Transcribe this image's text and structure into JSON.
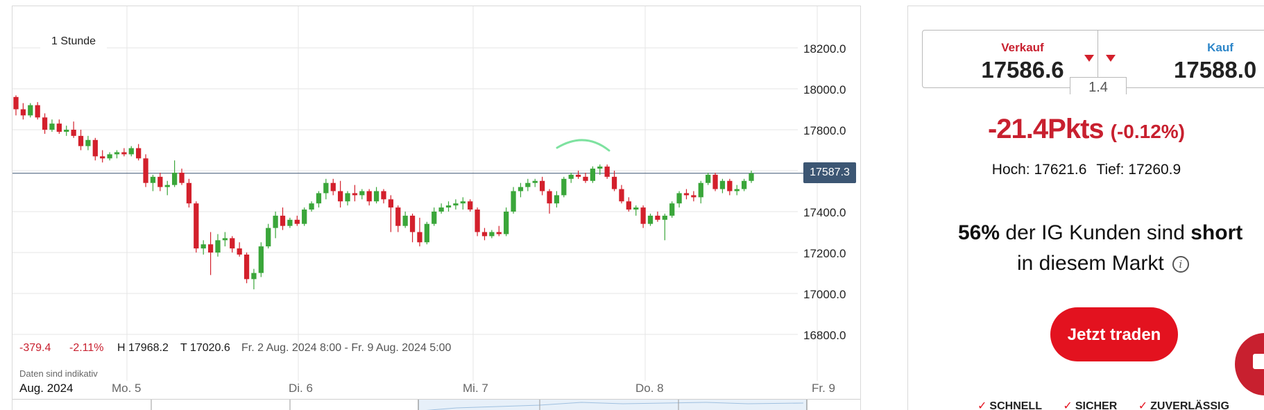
{
  "chart": {
    "period": "1 Stunde",
    "price_axis": [
      "18200.0",
      "18000.0",
      "17800.0",
      "17600.0",
      "17400.0",
      "17200.0",
      "17000.0",
      "16800.0"
    ],
    "current_price": "17587.3",
    "stats": {
      "change": "-379.4",
      "change_pct": "-2.11%",
      "high": "H 17968.2",
      "low": "T 17020.6",
      "range": "Fr. 2 Aug. 2024 8:00 - Fr. 9 Aug. 2024 5:00"
    },
    "disclaimer": "Daten sind indikativ",
    "month": "Aug. 2024",
    "days": [
      "Mo. 5",
      "Di. 6",
      "Mi. 7",
      "Do. 8",
      "Fr. 9"
    ],
    "colors": {
      "up": "#3aa63a",
      "down": "#d3202c",
      "line": "#3c5673"
    }
  },
  "chart_data": {
    "type": "candlestick",
    "interval": "1 Stunde",
    "y_axis_ticks": [
      16800,
      17000,
      17200,
      17400,
      17600,
      17800,
      18000,
      18200
    ],
    "x_axis_labels": [
      "Mo. 5",
      "Di. 6",
      "Mi. 7",
      "Do. 8",
      "Fr. 9"
    ],
    "current_price": 17587.3,
    "ohlc": [
      [
        17960,
        17968,
        17870,
        17900
      ],
      [
        17900,
        17930,
        17850,
        17870
      ],
      [
        17870,
        17930,
        17860,
        17920
      ],
      [
        17920,
        17935,
        17850,
        17860
      ],
      [
        17860,
        17880,
        17780,
        17800
      ],
      [
        17800,
        17850,
        17790,
        17830
      ],
      [
        17830,
        17850,
        17780,
        17790
      ],
      [
        17790,
        17820,
        17770,
        17800
      ],
      [
        17800,
        17840,
        17760,
        17770
      ],
      [
        17770,
        17800,
        17700,
        17720
      ],
      [
        17720,
        17770,
        17700,
        17750
      ],
      [
        17750,
        17760,
        17650,
        17670
      ],
      [
        17670,
        17700,
        17640,
        17660
      ],
      [
        17660,
        17690,
        17650,
        17680
      ],
      [
        17680,
        17700,
        17660,
        17690
      ],
      [
        17690,
        17710,
        17670,
        17680
      ],
      [
        17680,
        17720,
        17670,
        17710
      ],
      [
        17710,
        17730,
        17650,
        17660
      ],
      [
        17660,
        17680,
        17520,
        17540
      ],
      [
        17540,
        17580,
        17500,
        17570
      ],
      [
        17570,
        17590,
        17500,
        17520
      ],
      [
        17520,
        17550,
        17480,
        17530
      ],
      [
        17530,
        17650,
        17520,
        17590
      ],
      [
        17590,
        17610,
        17530,
        17540
      ],
      [
        17540,
        17560,
        17420,
        17440
      ],
      [
        17440,
        17450,
        17200,
        17220
      ],
      [
        17220,
        17260,
        17190,
        17240
      ],
      [
        17240,
        17300,
        17090,
        17200
      ],
      [
        17200,
        17290,
        17180,
        17260
      ],
      [
        17260,
        17300,
        17230,
        17270
      ],
      [
        17270,
        17280,
        17200,
        17220
      ],
      [
        17220,
        17250,
        17180,
        17190
      ],
      [
        17190,
        17200,
        17050,
        17070
      ],
      [
        17070,
        17120,
        17020,
        17100
      ],
      [
        17100,
        17250,
        17080,
        17230
      ],
      [
        17230,
        17340,
        17220,
        17320
      ],
      [
        17320,
        17400,
        17270,
        17380
      ],
      [
        17380,
        17420,
        17310,
        17330
      ],
      [
        17330,
        17370,
        17320,
        17360
      ],
      [
        17360,
        17380,
        17330,
        17340
      ],
      [
        17340,
        17420,
        17330,
        17410
      ],
      [
        17410,
        17450,
        17400,
        17440
      ],
      [
        17440,
        17500,
        17420,
        17490
      ],
      [
        17490,
        17560,
        17460,
        17540
      ],
      [
        17540,
        17560,
        17480,
        17500
      ],
      [
        17500,
        17550,
        17420,
        17450
      ],
      [
        17450,
        17500,
        17430,
        17490
      ],
      [
        17490,
        17530,
        17450,
        17480
      ],
      [
        17480,
        17510,
        17460,
        17500
      ],
      [
        17500,
        17510,
        17430,
        17450
      ],
      [
        17450,
        17520,
        17440,
        17500
      ],
      [
        17500,
        17510,
        17440,
        17460
      ],
      [
        17460,
        17480,
        17300,
        17420
      ],
      [
        17420,
        17430,
        17300,
        17330
      ],
      [
        17330,
        17400,
        17320,
        17380
      ],
      [
        17380,
        17390,
        17250,
        17300
      ],
      [
        17300,
        17370,
        17230,
        17250
      ],
      [
        17250,
        17350,
        17240,
        17340
      ],
      [
        17340,
        17420,
        17330,
        17400
      ],
      [
        17400,
        17440,
        17390,
        17420
      ],
      [
        17420,
        17450,
        17400,
        17430
      ],
      [
        17430,
        17460,
        17410,
        17440
      ],
      [
        17440,
        17470,
        17410,
        17450
      ],
      [
        17450,
        17460,
        17400,
        17410
      ],
      [
        17410,
        17420,
        17280,
        17300
      ],
      [
        17300,
        17320,
        17260,
        17280
      ],
      [
        17280,
        17310,
        17270,
        17300
      ],
      [
        17300,
        17330,
        17280,
        17290
      ],
      [
        17290,
        17420,
        17280,
        17400
      ],
      [
        17400,
        17520,
        17390,
        17500
      ],
      [
        17500,
        17540,
        17470,
        17520
      ],
      [
        17520,
        17560,
        17500,
        17540
      ],
      [
        17540,
        17560,
        17520,
        17550
      ],
      [
        17550,
        17570,
        17480,
        17500
      ],
      [
        17500,
        17510,
        17390,
        17440
      ],
      [
        17440,
        17500,
        17420,
        17480
      ],
      [
        17480,
        17570,
        17470,
        17560
      ],
      [
        17560,
        17590,
        17540,
        17580
      ],
      [
        17580,
        17600,
        17560,
        17570
      ],
      [
        17570,
        17590,
        17540,
        17550
      ],
      [
        17550,
        17621,
        17540,
        17610
      ],
      [
        17610,
        17630,
        17580,
        17620
      ],
      [
        17620,
        17630,
        17560,
        17570
      ],
      [
        17570,
        17600,
        17500,
        17510
      ],
      [
        17510,
        17530,
        17440,
        17450
      ],
      [
        17450,
        17470,
        17400,
        17410
      ],
      [
        17410,
        17430,
        17380,
        17420
      ],
      [
        17420,
        17430,
        17320,
        17340
      ],
      [
        17340,
        17390,
        17330,
        17380
      ],
      [
        17380,
        17400,
        17350,
        17360
      ],
      [
        17360,
        17390,
        17260,
        17380
      ],
      [
        17380,
        17450,
        17370,
        17440
      ],
      [
        17440,
        17500,
        17420,
        17490
      ],
      [
        17490,
        17510,
        17460,
        17480
      ],
      [
        17480,
        17500,
        17450,
        17470
      ],
      [
        17470,
        17550,
        17440,
        17540
      ],
      [
        17540,
        17590,
        17530,
        17580
      ],
      [
        17580,
        17590,
        17500,
        17510
      ],
      [
        17510,
        17560,
        17490,
        17550
      ],
      [
        17550,
        17560,
        17480,
        17500
      ],
      [
        17500,
        17530,
        17480,
        17510
      ],
      [
        17510,
        17560,
        17500,
        17550
      ],
      [
        17550,
        17600,
        17540,
        17587
      ]
    ]
  },
  "deal": {
    "sell_label": "Verkauf",
    "sell_price": "17586.6",
    "buy_label": "Kauf",
    "buy_price": "17588.0",
    "spread": "1.4",
    "change_pts": "-21.4Pkts",
    "change_pct": "(-0.12%)",
    "high": "Hoch: 17621.6",
    "low": "Tief: 17260.9",
    "sentiment_pct": "56%",
    "sentiment_text": "der IG Kunden sind",
    "sentiment_position": "short",
    "sentiment_line2": "in diesem Markt",
    "info_glyph": "i",
    "trade_button": "Jetzt traden",
    "features": [
      "SCHNELL",
      "SICHER",
      "ZUVERLÄSSIG"
    ],
    "check_glyph": "✓"
  }
}
